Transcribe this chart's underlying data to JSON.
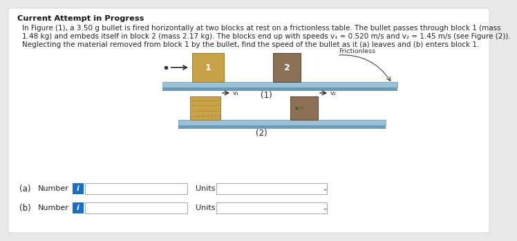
{
  "title": "Current Attempt in Progress",
  "line1": "In Figure (1), a 3.50 g bullet is fired horizontally at two blocks at rest on a frictionless table. The bullet passes through block 1 (mass",
  "line2": "1.48 kg) and embeds itself in block 2 (mass 2.17 kg). The blocks end up with speeds v₁ = 0.520 m/s and v₂ = 1.45 m/s (see Figure (2)).",
  "line3": "Neglecting the material removed from block 1 by the bullet, find the speed of the bullet as it (a) leaves and (b) enters block 1.",
  "bg_color": "#e8e8e8",
  "panel_color": "#f5f5f5",
  "table_top_color": "#9bbfd4",
  "table_body_color": "#6a9ab8",
  "block1_fig1_color": "#c9a248",
  "block2_fig1_color": "#8c7055",
  "block1_fig2_color": "#c9a248",
  "block2_fig2_color": "#8c7055",
  "blue_btn_color": "#1a6fc4",
  "frictionless_label": "Frictionless",
  "fig1_label": "(1)",
  "fig2_label": "(2)",
  "label_a": "(a)",
  "label_b": "(b)",
  "number_label": "Number",
  "units_label": "Units",
  "v1_label": "v₁",
  "v2_label": "v₂"
}
